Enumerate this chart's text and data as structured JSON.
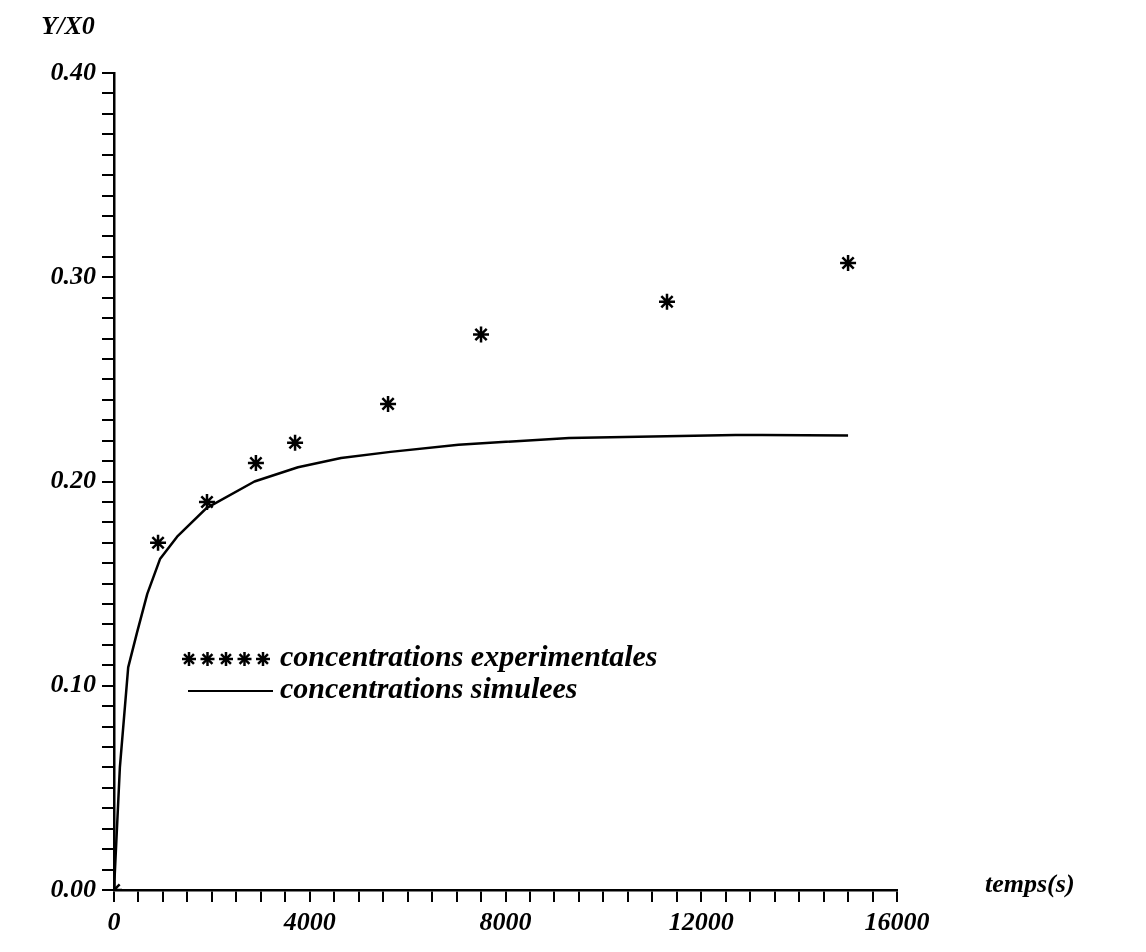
{
  "chart_data": {
    "type": "scatter",
    "xlabel": "temps(s)",
    "ylabel": "Y/X0",
    "xlim": [
      0,
      16000
    ],
    "ylim": [
      0,
      0.4
    ],
    "xticks": [
      0,
      {
        "value": 500,
        "label": null
      },
      {
        "value": 1000,
        "label": null
      },
      {
        "value": 1500,
        "label": null
      },
      {
        "value": 2000,
        "label": null
      },
      {
        "value": 2500,
        "label": null
      },
      {
        "value": 3000,
        "label": null
      },
      {
        "value": 3500,
        "label": null
      },
      4000,
      {
        "value": 4500,
        "label": null
      },
      {
        "value": 5000,
        "label": null
      },
      {
        "value": 5500,
        "label": null
      },
      {
        "value": 6000,
        "label": null
      },
      {
        "value": 6500,
        "label": null
      },
      {
        "value": 7000,
        "label": null
      },
      {
        "value": 7500,
        "label": null
      },
      8000,
      {
        "value": 8500,
        "label": null
      },
      {
        "value": 9000,
        "label": null
      },
      {
        "value": 9500,
        "label": null
      },
      {
        "value": 10000,
        "label": null
      },
      {
        "value": 10500,
        "label": null
      },
      {
        "value": 11000,
        "label": null
      },
      {
        "value": 11500,
        "label": null
      },
      12000,
      {
        "value": 12500,
        "label": null
      },
      {
        "value": 13000,
        "label": null
      },
      {
        "value": 13500,
        "label": null
      },
      {
        "value": 14000,
        "label": null
      },
      {
        "value": 14500,
        "label": null
      },
      {
        "value": 15000,
        "label": null
      },
      {
        "value": 15500,
        "label": null
      },
      16000
    ],
    "yticks": [
      {
        "value": 0,
        "label": "0.00"
      },
      {
        "value": 0.01,
        "label": null
      },
      {
        "value": 0.02,
        "label": null
      },
      {
        "value": 0.03,
        "label": null
      },
      {
        "value": 0.04,
        "label": null
      },
      {
        "value": 0.05,
        "label": null
      },
      {
        "value": 0.06,
        "label": null
      },
      {
        "value": 0.07,
        "label": null
      },
      {
        "value": 0.08,
        "label": null
      },
      {
        "value": 0.09,
        "label": null
      },
      {
        "value": 0.1,
        "label": "0.10"
      },
      {
        "value": 0.11,
        "label": null
      },
      {
        "value": 0.12,
        "label": null
      },
      {
        "value": 0.13,
        "label": null
      },
      {
        "value": 0.14,
        "label": null
      },
      {
        "value": 0.15,
        "label": null
      },
      {
        "value": 0.16,
        "label": null
      },
      {
        "value": 0.17,
        "label": null
      },
      {
        "value": 0.18,
        "label": null
      },
      {
        "value": 0.19,
        "label": null
      },
      {
        "value": 0.2,
        "label": "0.20"
      },
      {
        "value": 0.21,
        "label": null
      },
      {
        "value": 0.22,
        "label": null
      },
      {
        "value": 0.23,
        "label": null
      },
      {
        "value": 0.24,
        "label": null
      },
      {
        "value": 0.25,
        "label": null
      },
      {
        "value": 0.26,
        "label": null
      },
      {
        "value": 0.27,
        "label": null
      },
      {
        "value": 0.28,
        "label": null
      },
      {
        "value": 0.29,
        "label": null
      },
      {
        "value": 0.3,
        "label": "0.30"
      },
      {
        "value": 0.31,
        "label": null
      },
      {
        "value": 0.32,
        "label": null
      },
      {
        "value": 0.33,
        "label": null
      },
      {
        "value": 0.34,
        "label": null
      },
      {
        "value": 0.35,
        "label": null
      },
      {
        "value": 0.36,
        "label": null
      },
      {
        "value": 0.37,
        "label": null
      },
      {
        "value": 0.38,
        "label": null
      },
      {
        "value": 0.39,
        "label": null
      },
      {
        "value": 0.4,
        "label": "0.40"
      }
    ],
    "grid": false,
    "legend": "bottom left",
    "series": [
      {
        "name": "concentrations experimentales",
        "marker": "cross",
        "color": "#000000",
        "x": [
          0,
          900,
          1900,
          2900,
          3700,
          5600,
          7500,
          11300,
          15000
        ],
        "values": [
          0,
          0.17,
          0.19,
          0.209,
          0.219,
          0.238,
          0.272,
          0.288,
          0.307
        ]
      },
      {
        "name": "concentrations simulees",
        "type": "line",
        "marker": "none",
        "line_style": "solid",
        "color": "#000000",
        "x": [
          0,
          60,
          120,
          290,
          470,
          680,
          940,
          1290,
          1890,
          2870,
          3760,
          4640,
          5650,
          7040,
          9300,
          12700,
          15000
        ],
        "values": [
          0,
          0.03,
          0.06,
          0.109,
          0.126,
          0.145,
          0.162,
          0.173,
          0.187,
          0.2,
          0.207,
          0.2115,
          0.2145,
          0.218,
          0.2213,
          0.2228,
          0.2225
        ]
      }
    ]
  }
}
